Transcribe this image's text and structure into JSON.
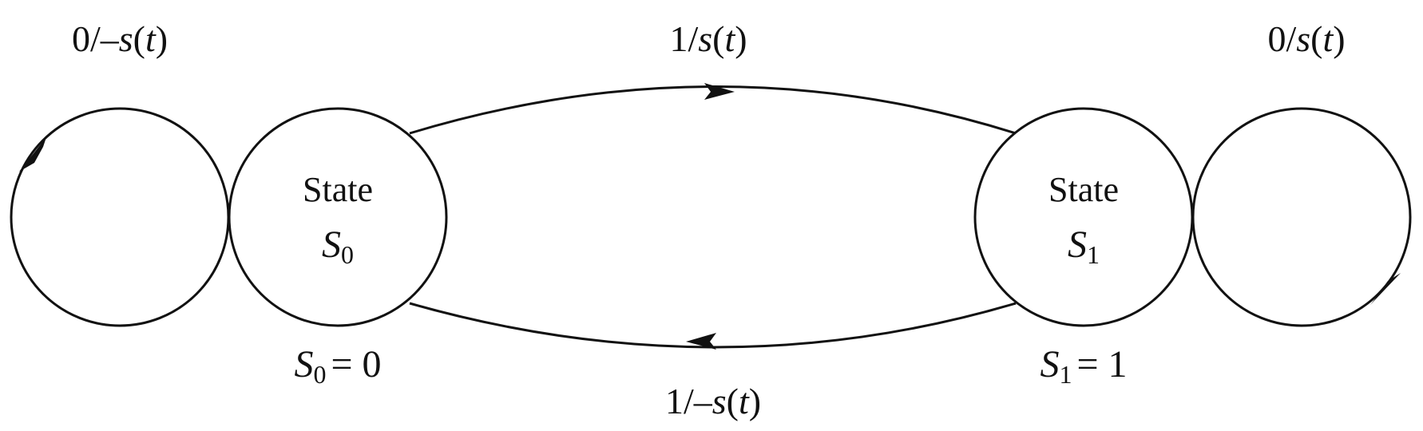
{
  "states": [
    {
      "word": "State",
      "symbol": "S",
      "sub": "0",
      "value_eq": "= 0"
    },
    {
      "word": "State",
      "symbol": "S",
      "sub": "1",
      "value_eq": "= 1"
    }
  ],
  "transitions": {
    "self_loop_s0": {
      "num": "0/–",
      "fn": "s",
      "open": "(",
      "var": "t",
      "close": ")"
    },
    "s0_to_s1": {
      "num": "1/",
      "fn": "s",
      "open": "(",
      "var": "t",
      "close": ")"
    },
    "self_loop_s1": {
      "num": "0/",
      "fn": "s",
      "open": "(",
      "var": "t",
      "close": ")"
    },
    "s1_to_s0": {
      "num": "1/–",
      "fn": "s",
      "open": "(",
      "var": "t",
      "close": ")"
    }
  }
}
